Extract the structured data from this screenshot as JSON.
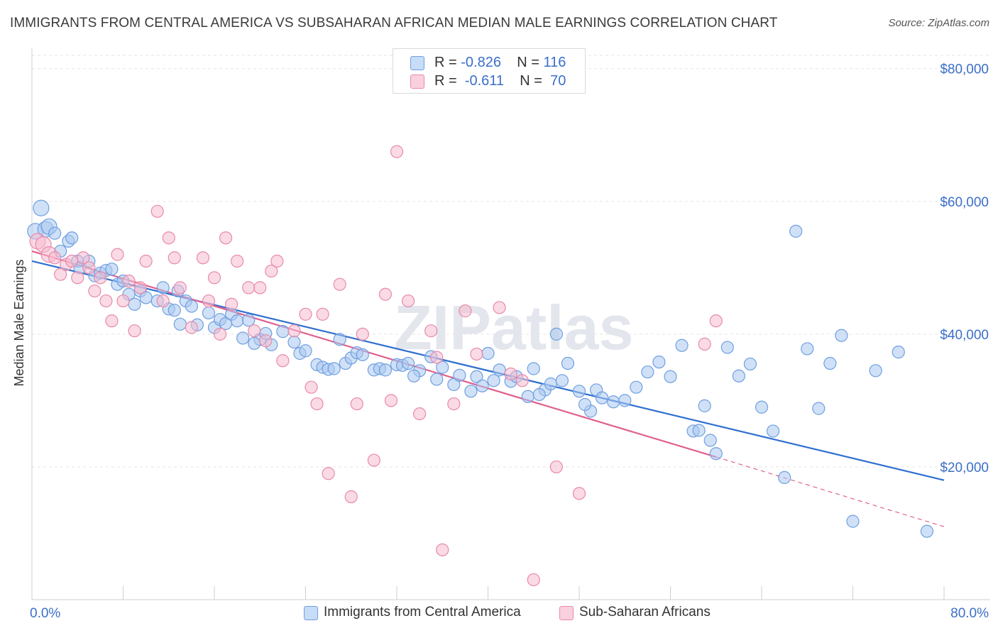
{
  "header": {
    "title": "IMMIGRANTS FROM CENTRAL AMERICA VS SUBSAHARAN AFRICAN MEDIAN MALE EARNINGS CORRELATION CHART",
    "source": "Source: ZipAtlas.com"
  },
  "watermark": "ZIPatlas",
  "legend": {
    "rows": [
      {
        "r_label": "R =",
        "r_value": "-0.826",
        "n_label": "N =",
        "n_value": "116",
        "color": "#a9c8f0"
      },
      {
        "r_label": "R =",
        "r_value": "-0.611",
        "n_label": "N =",
        "n_value": "70",
        "color": "#f6bccf"
      }
    ]
  },
  "bottom_legend": {
    "series1": "Immigrants from Central America",
    "series2": "Sub-Saharan Africans"
  },
  "colors": {
    "blue_fill": "#a9c8f0",
    "blue_stroke": "#6f9fe0",
    "blue_line": "#2f6fd0",
    "pink_fill": "#f6bccf",
    "pink_stroke": "#e88aaa",
    "pink_line": "#e0608e",
    "grid": "#e5e5e5",
    "tick_label": "#3b6fc9"
  },
  "chart_data": {
    "type": "scatter",
    "title": "IMMIGRANTS FROM CENTRAL AMERICA VS SUBSAHARAN AFRICAN MEDIAN MALE EARNINGS CORRELATION CHART",
    "xlabel": "",
    "ylabel": "Median Male Earnings",
    "xlim": [
      0,
      80
    ],
    "ylim": [
      0,
      82000
    ],
    "x_tick_labels": [
      "0.0%",
      "80.0%"
    ],
    "y_ticks": [
      20000,
      40000,
      60000,
      80000
    ],
    "y_tick_labels": [
      "$20,000",
      "$40,000",
      "$60,000",
      "$80,000"
    ],
    "grid": true,
    "legend_position": "top-center",
    "series": [
      {
        "name": "Immigrants from Central America",
        "r": -0.826,
        "n": 116,
        "trend": {
          "x0": 0,
          "y0": 51000,
          "x1": 80,
          "y1": 18000
        },
        "points": [
          [
            0.3,
            55500
          ],
          [
            0.8,
            59000
          ],
          [
            1.2,
            55800
          ],
          [
            1.5,
            56200
          ],
          [
            2.0,
            55200
          ],
          [
            2.5,
            52500
          ],
          [
            3.2,
            54000
          ],
          [
            3.5,
            54500
          ],
          [
            4.0,
            51000
          ],
          [
            4.2,
            50000
          ],
          [
            5.0,
            51000
          ],
          [
            5.5,
            48800
          ],
          [
            6.0,
            49200
          ],
          [
            6.5,
            49600
          ],
          [
            7.0,
            49800
          ],
          [
            7.5,
            47500
          ],
          [
            8.0,
            48000
          ],
          [
            8.5,
            46000
          ],
          [
            9.0,
            44500
          ],
          [
            9.5,
            46500
          ],
          [
            10.0,
            45500
          ],
          [
            11.0,
            45000
          ],
          [
            11.5,
            47000
          ],
          [
            12.0,
            43800
          ],
          [
            12.5,
            43600
          ],
          [
            13.0,
            41500
          ],
          [
            13.5,
            45000
          ],
          [
            14.0,
            44200
          ],
          [
            14.5,
            41400
          ],
          [
            15.5,
            43200
          ],
          [
            16.0,
            41000
          ],
          [
            16.5,
            42200
          ],
          [
            17.0,
            41600
          ],
          [
            17.5,
            43000
          ],
          [
            18.0,
            42000
          ],
          [
            18.5,
            39400
          ],
          [
            19.0,
            42100
          ],
          [
            20.0,
            39200
          ],
          [
            20.5,
            40100
          ],
          [
            21.0,
            38400
          ],
          [
            22.0,
            40400
          ],
          [
            23.0,
            38800
          ],
          [
            23.5,
            37100
          ],
          [
            24.0,
            37500
          ],
          [
            25.0,
            35400
          ],
          [
            25.5,
            35000
          ],
          [
            26.0,
            34700
          ],
          [
            27.0,
            39200
          ],
          [
            27.5,
            35600
          ],
          [
            28.0,
            36400
          ],
          [
            28.5,
            37200
          ],
          [
            29.0,
            36900
          ],
          [
            30.0,
            34600
          ],
          [
            30.5,
            34800
          ],
          [
            31.0,
            34600
          ],
          [
            32.0,
            35400
          ],
          [
            32.5,
            35300
          ],
          [
            33.0,
            35600
          ],
          [
            34.0,
            34500
          ],
          [
            35.0,
            36600
          ],
          [
            35.5,
            33200
          ],
          [
            36.0,
            35000
          ],
          [
            37.0,
            32400
          ],
          [
            37.5,
            33800
          ],
          [
            38.5,
            31400
          ],
          [
            39.0,
            33600
          ],
          [
            40.0,
            37100
          ],
          [
            40.5,
            33000
          ],
          [
            41.0,
            34600
          ],
          [
            42.0,
            32900
          ],
          [
            42.5,
            33600
          ],
          [
            43.5,
            30600
          ],
          [
            44.0,
            34800
          ],
          [
            45.0,
            31600
          ],
          [
            45.5,
            32500
          ],
          [
            46.0,
            40000
          ],
          [
            46.5,
            33000
          ],
          [
            47.0,
            35600
          ],
          [
            48.0,
            31400
          ],
          [
            49.0,
            28400
          ],
          [
            49.5,
            31600
          ],
          [
            50.0,
            30400
          ],
          [
            51.0,
            29800
          ],
          [
            52.0,
            30000
          ],
          [
            53.0,
            32000
          ],
          [
            54.0,
            34300
          ],
          [
            55.0,
            35800
          ],
          [
            56.0,
            33600
          ],
          [
            57.0,
            38300
          ],
          [
            58.0,
            25400
          ],
          [
            58.5,
            25500
          ],
          [
            59.0,
            29200
          ],
          [
            59.5,
            24000
          ],
          [
            60.0,
            22000
          ],
          [
            61.0,
            38000
          ],
          [
            62.0,
            33700
          ],
          [
            63.0,
            35500
          ],
          [
            64.0,
            29000
          ],
          [
            65.0,
            25400
          ],
          [
            66.0,
            18400
          ],
          [
            67.0,
            55500
          ],
          [
            68.0,
            37800
          ],
          [
            69.0,
            28800
          ],
          [
            70.0,
            35600
          ],
          [
            71.0,
            39800
          ],
          [
            72.0,
            11800
          ],
          [
            74.0,
            34500
          ],
          [
            76.0,
            37300
          ],
          [
            78.5,
            10300
          ],
          [
            12.8,
            46500
          ],
          [
            19.5,
            38600
          ],
          [
            26.5,
            34800
          ],
          [
            33.5,
            33700
          ],
          [
            39.5,
            32200
          ],
          [
            44.5,
            30900
          ],
          [
            48.5,
            29400
          ]
        ]
      },
      {
        "name": "Sub-Saharan Africans",
        "r": -0.611,
        "n": 70,
        "trend": {
          "x0": 0,
          "y0": 52500,
          "x1": 60,
          "y1": 21500,
          "dashed_to_x": 80,
          "dashed_to_y": 11000
        },
        "points": [
          [
            0.5,
            54000
          ],
          [
            1.0,
            53500
          ],
          [
            1.5,
            52000
          ],
          [
            2.0,
            51500
          ],
          [
            2.5,
            49000
          ],
          [
            3.0,
            50500
          ],
          [
            3.5,
            51000
          ],
          [
            4.0,
            48500
          ],
          [
            4.5,
            51500
          ],
          [
            5.0,
            50000
          ],
          [
            5.5,
            46500
          ],
          [
            6.0,
            48500
          ],
          [
            6.5,
            45000
          ],
          [
            7.0,
            42000
          ],
          [
            7.5,
            52000
          ],
          [
            8.0,
            45000
          ],
          [
            8.5,
            48000
          ],
          [
            9.0,
            40500
          ],
          [
            9.5,
            47000
          ],
          [
            10.0,
            51000
          ],
          [
            11.0,
            58500
          ],
          [
            11.5,
            45000
          ],
          [
            12.0,
            54500
          ],
          [
            12.5,
            51500
          ],
          [
            13.0,
            47000
          ],
          [
            14.0,
            41000
          ],
          [
            15.0,
            51500
          ],
          [
            15.5,
            45000
          ],
          [
            16.0,
            48500
          ],
          [
            16.5,
            40000
          ],
          [
            17.0,
            54500
          ],
          [
            17.5,
            44500
          ],
          [
            18.0,
            51000
          ],
          [
            19.0,
            47000
          ],
          [
            19.5,
            40500
          ],
          [
            20.0,
            47000
          ],
          [
            21.0,
            49500
          ],
          [
            21.5,
            51000
          ],
          [
            22.0,
            36000
          ],
          [
            23.0,
            40500
          ],
          [
            24.0,
            43000
          ],
          [
            24.5,
            32000
          ],
          [
            25.0,
            29500
          ],
          [
            25.5,
            43000
          ],
          [
            26.0,
            19000
          ],
          [
            27.0,
            47500
          ],
          [
            28.0,
            15500
          ],
          [
            28.5,
            29500
          ],
          [
            30.0,
            21000
          ],
          [
            31.0,
            46000
          ],
          [
            31.5,
            30000
          ],
          [
            32.0,
            67500
          ],
          [
            33.0,
            45000
          ],
          [
            34.0,
            28000
          ],
          [
            35.0,
            40500
          ],
          [
            35.5,
            36500
          ],
          [
            36.0,
            7500
          ],
          [
            37.0,
            29500
          ],
          [
            38.0,
            43500
          ],
          [
            41.0,
            44000
          ],
          [
            42.0,
            34000
          ],
          [
            43.0,
            33000
          ],
          [
            44.0,
            3000
          ],
          [
            46.0,
            20000
          ],
          [
            48.0,
            16000
          ],
          [
            59.0,
            38500
          ],
          [
            60.0,
            42000
          ],
          [
            29.0,
            40000
          ],
          [
            39.0,
            37000
          ],
          [
            20.5,
            39000
          ]
        ]
      }
    ]
  }
}
